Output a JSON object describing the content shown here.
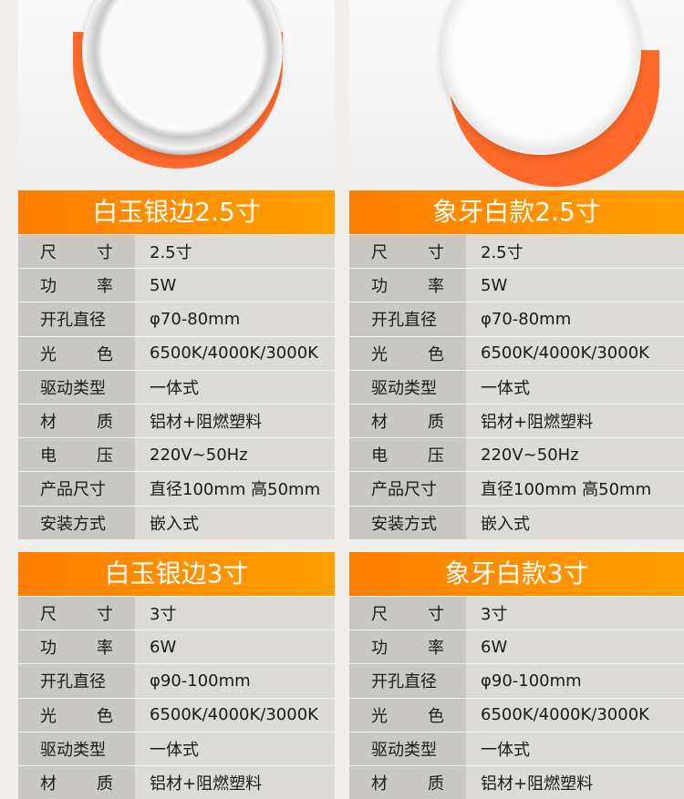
{
  "colors": {
    "accent": "#ff8a00",
    "label_bg": "#c9c8c5",
    "value_bg": "#dcdbd8"
  },
  "labels": [
    "尺　　寸",
    "功　　率",
    "开孔直径",
    "光　　色",
    "驱动类型",
    "材　　质",
    "电　　压",
    "产品尺寸",
    "安装方式"
  ],
  "products": [
    {
      "title": "白玉银边2.5寸",
      "values": [
        "2.5寸",
        "5W",
        "φ70-80mm",
        "6500K/4000K/3000K",
        "一体式",
        "铝材+阻燃塑料",
        "220V~50Hz",
        "直径100mm 高50mm",
        "嵌入式"
      ]
    },
    {
      "title": "象牙白款2.5寸",
      "values": [
        "2.5寸",
        "5W",
        "φ70-80mm",
        "6500K/4000K/3000K",
        "一体式",
        "铝材+阻燃塑料",
        "220V~50Hz",
        "直径100mm 高50mm",
        "嵌入式"
      ]
    },
    {
      "title": "白玉银边3寸",
      "values": [
        "3寸",
        "6W",
        "φ90-100mm",
        "6500K/4000K/3000K",
        "一体式",
        "铝材+阻燃塑料"
      ]
    },
    {
      "title": "象牙白款3寸",
      "values": [
        "3寸",
        "6W",
        "φ90-100mm",
        "6500K/4000K/3000K",
        "一体式",
        "铝材+阻燃塑料"
      ]
    }
  ]
}
